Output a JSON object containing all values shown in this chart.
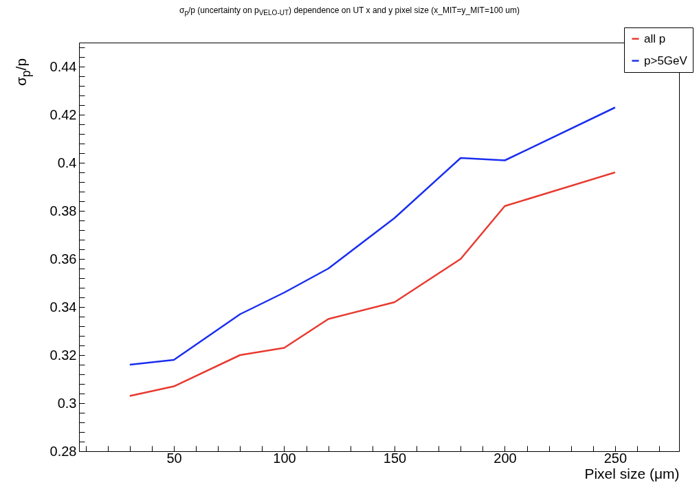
{
  "chart_data": {
    "type": "line",
    "title": "σ$_{p}$/p (uncertainty on p$_{VELO-UT}$) dependence on UT x and y pixel size (x_MIT=y_MIT=100 um)",
    "xlabel": "Pixel size (μm)",
    "ylabel": "σ$_{p}$/p",
    "x": [
      30,
      50,
      80,
      100,
      120,
      150,
      180,
      200,
      250
    ],
    "series": [
      {
        "name": "all p",
        "color": "#e8392f",
        "values": [
          0.303,
          0.307,
          0.32,
          0.323,
          0.335,
          0.342,
          0.36,
          0.382,
          0.396
        ]
      },
      {
        "name": "p>5GeV",
        "color": "#1a2ef0",
        "values": [
          0.316,
          0.318,
          0.337,
          0.346,
          0.356,
          0.377,
          0.402,
          0.401,
          0.423
        ]
      }
    ],
    "xlim": [
      7,
      279
    ],
    "ylim": [
      0.28,
      0.45
    ],
    "xticks": [
      {
        "value": 10,
        "label": null
      },
      {
        "value": 20,
        "label": null
      },
      {
        "value": 30,
        "label": null
      },
      {
        "value": 40,
        "label": null
      },
      50,
      {
        "value": 60,
        "label": null
      },
      {
        "value": 70,
        "label": null
      },
      {
        "value": 80,
        "label": null
      },
      {
        "value": 90,
        "label": null
      },
      100,
      {
        "value": 110,
        "label": null
      },
      {
        "value": 120,
        "label": null
      },
      {
        "value": 130,
        "label": null
      },
      {
        "value": 140,
        "label": null
      },
      150,
      {
        "value": 160,
        "label": null
      },
      {
        "value": 170,
        "label": null
      },
      {
        "value": 180,
        "label": null
      },
      {
        "value": 190,
        "label": null
      },
      200,
      {
        "value": 210,
        "label": null
      },
      {
        "value": 220,
        "label": null
      },
      {
        "value": 230,
        "label": null
      },
      {
        "value": 240,
        "label": null
      },
      250,
      {
        "value": 260,
        "label": null
      },
      {
        "value": 270,
        "label": null
      }
    ],
    "yticks": [
      0.28,
      {
        "value": 0.284,
        "label": null
      },
      {
        "value": 0.288,
        "label": null
      },
      {
        "value": 0.292,
        "label": null
      },
      {
        "value": 0.296,
        "label": null
      },
      0.3,
      {
        "value": 0.304,
        "label": null
      },
      {
        "value": 0.308,
        "label": null
      },
      {
        "value": 0.312,
        "label": null
      },
      {
        "value": 0.316,
        "label": null
      },
      0.32,
      {
        "value": 0.324,
        "label": null
      },
      {
        "value": 0.328,
        "label": null
      },
      {
        "value": 0.332,
        "label": null
      },
      {
        "value": 0.336,
        "label": null
      },
      0.34,
      {
        "value": 0.344,
        "label": null
      },
      {
        "value": 0.348,
        "label": null
      },
      {
        "value": 0.352,
        "label": null
      },
      {
        "value": 0.356,
        "label": null
      },
      0.36,
      {
        "value": 0.364,
        "label": null
      },
      {
        "value": 0.368,
        "label": null
      },
      {
        "value": 0.372,
        "label": null
      },
      {
        "value": 0.376,
        "label": null
      },
      0.38,
      {
        "value": 0.384,
        "label": null
      },
      {
        "value": 0.388,
        "label": null
      },
      {
        "value": 0.392,
        "label": null
      },
      {
        "value": 0.396,
        "label": null
      },
      0.4,
      {
        "value": 0.404,
        "label": null
      },
      {
        "value": 0.408,
        "label": null
      },
      {
        "value": 0.412,
        "label": null
      },
      {
        "value": 0.416,
        "label": null
      },
      0.42,
      {
        "value": 0.424,
        "label": null
      },
      {
        "value": 0.428,
        "label": null
      },
      {
        "value": 0.432,
        "label": null
      },
      {
        "value": 0.436,
        "label": null
      },
      0.44,
      {
        "value": 0.444,
        "label": null
      },
      {
        "value": 0.448,
        "label": null
      }
    ],
    "legend": "top right",
    "grid": false,
    "marker": "none",
    "line_style": "solid"
  }
}
